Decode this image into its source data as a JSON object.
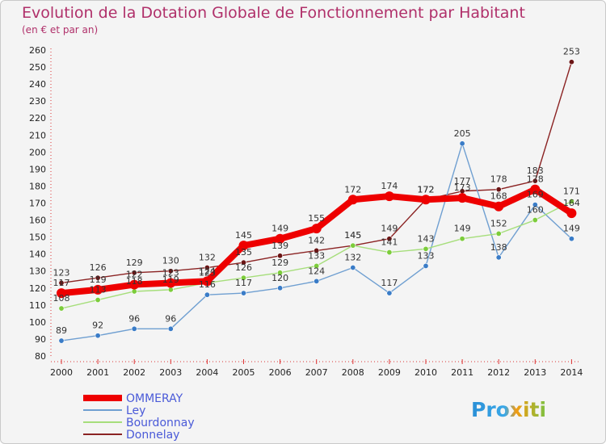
{
  "chart_data": {
    "type": "line",
    "title": "Evolution de la Dotation Globale de Fonctionnement par Habitant",
    "subtitle": "(en € et par an)",
    "xlabel": "",
    "ylabel": "",
    "ylim": [
      80,
      260
    ],
    "ytick_step": 10,
    "categories": [
      "2000",
      "2001",
      "2002",
      "2003",
      "2004",
      "2005",
      "2006",
      "2007",
      "2008",
      "2009",
      "2010",
      "2011",
      "2012",
      "2013",
      "2014"
    ],
    "series": [
      {
        "name": "Donnelay",
        "color": "#8b2323",
        "marker": "#6b1515",
        "values": [
          123,
          126,
          129,
          130,
          132,
          135,
          139,
          142,
          145,
          149,
          172,
          177,
          178,
          183,
          253
        ]
      },
      {
        "name": "Ley",
        "color": "#6f9fd1",
        "marker": "#3a7cc7",
        "values": [
          89,
          92,
          96,
          96,
          116,
          117,
          120,
          124,
          132,
          117,
          133,
          205,
          138,
          169,
          149
        ]
      },
      {
        "name": "Bourdonnay",
        "color": "#a6de7b",
        "marker": "#7ccc3b",
        "values": [
          108,
          113,
          118,
          119,
          123,
          126,
          129,
          133,
          145,
          141,
          143,
          149,
          152,
          160,
          171
        ]
      },
      {
        "name": "OMMERAY",
        "color": "#ee0000",
        "marker": "#ee0000",
        "values": [
          117,
          119,
          122,
          123,
          124,
          145,
          149,
          155,
          172,
          174,
          172,
          173,
          168,
          178,
          164
        ]
      }
    ],
    "legend": [
      "OMMERAY",
      "Ley",
      "Bourdonnay",
      "Donnelay"
    ],
    "legend_position": "bottom-left",
    "grid": false,
    "logo": "Proxiti"
  }
}
